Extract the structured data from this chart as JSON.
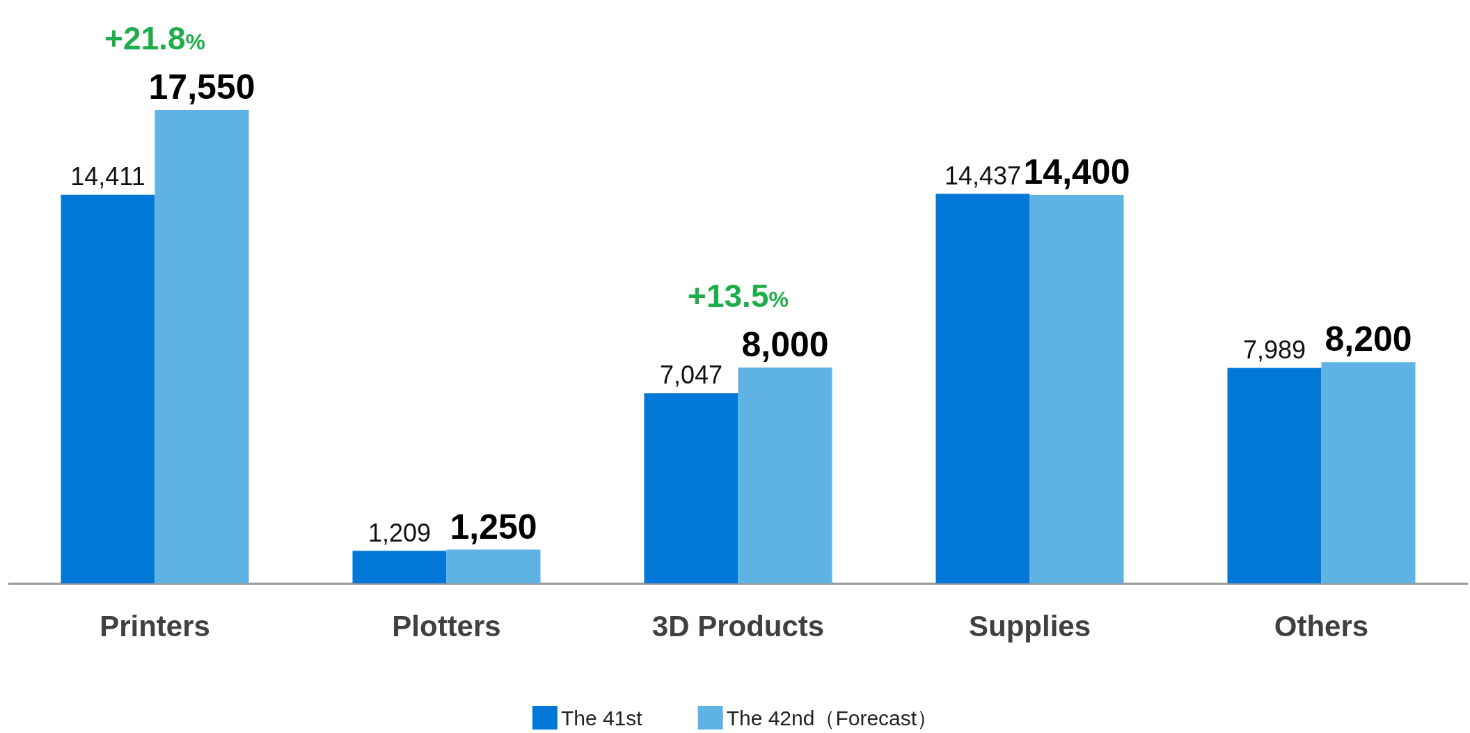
{
  "chart_data": {
    "type": "bar",
    "categories": [
      "Printers",
      "Plotters",
      "3D Products",
      "Supplies",
      "Others"
    ],
    "series": [
      {
        "name": "The 41st",
        "color": "#0177d7",
        "values": [
          14411,
          1209,
          7047,
          14437,
          7989
        ],
        "value_labels": [
          "14,411",
          "1,209",
          "7,047",
          "14,437",
          "7,989"
        ]
      },
      {
        "name": "The 42nd（Forecast）",
        "color": "#5fb3e4",
        "values": [
          17550,
          1250,
          8000,
          14400,
          8200
        ],
        "value_labels": [
          "17,550",
          "1,250",
          "8,000",
          "14,400",
          "8,200"
        ]
      }
    ],
    "legend": "bottom",
    "annotations": [
      {
        "text": "+21.8%",
        "x": "Printers",
        "y": 17550
      },
      {
        "text": "+13.5%",
        "x": "3D Products",
        "y": 8000
      }
    ]
  }
}
